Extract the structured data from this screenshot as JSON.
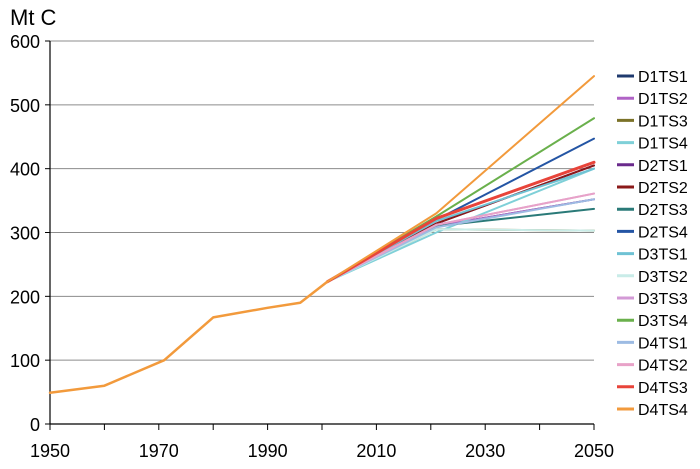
{
  "chart_data": {
    "type": "line",
    "unit_label": "Mt C",
    "xlim": [
      1950,
      2050
    ],
    "ylim": [
      0,
      600
    ],
    "xticks": [
      "1950",
      "1970",
      "1990",
      "2010",
      "2030",
      "2050"
    ],
    "yticks": [
      "0",
      "100",
      "200",
      "300",
      "400",
      "500",
      "600"
    ],
    "grid": "horizontal",
    "legend_position": "right",
    "history": {
      "x": [
        1950,
        1960,
        1971,
        1980,
        1990,
        1996,
        2001
      ],
      "y": [
        49,
        60,
        100,
        167,
        182,
        190,
        223
      ]
    },
    "x": [
      2001,
      2021,
      2050
    ],
    "series": [
      {
        "name": "D1TS1",
        "color": "#1f3a6e",
        "values": [
          223,
          310,
          352
        ]
      },
      {
        "name": "D1TS2",
        "color": "#b063c6",
        "values": [
          223,
          310,
          352
        ]
      },
      {
        "name": "D1TS3",
        "color": "#7b7228",
        "values": [
          223,
          305,
          303
        ]
      },
      {
        "name": "D1TS4",
        "color": "#7fd0d8",
        "values": [
          223,
          300,
          400
        ]
      },
      {
        "name": "D2TS1",
        "color": "#6a2a8c",
        "values": [
          223,
          314,
          405
        ]
      },
      {
        "name": "D2TS2",
        "color": "#8b1a1a",
        "values": [
          223,
          314,
          405
        ]
      },
      {
        "name": "D2TS3",
        "color": "#2a7a78",
        "values": [
          223,
          310,
          337
        ]
      },
      {
        "name": "D2TS4",
        "color": "#2455a4",
        "values": [
          223,
          320,
          447
        ]
      },
      {
        "name": "D3TS1",
        "color": "#6fc2d4",
        "values": [
          223,
          318,
          400
        ]
      },
      {
        "name": "D3TS2",
        "color": "#c9ece8",
        "values": [
          223,
          305,
          303
        ]
      },
      {
        "name": "D3TS3",
        "color": "#d39ad6",
        "values": [
          223,
          312,
          361
        ]
      },
      {
        "name": "D3TS4",
        "color": "#6ab04c",
        "values": [
          223,
          325,
          479
        ]
      },
      {
        "name": "D4TS1",
        "color": "#9dbbe3",
        "values": [
          223,
          308,
          352
        ]
      },
      {
        "name": "D4TS2",
        "color": "#e8a2c8",
        "values": [
          223,
          312,
          361
        ]
      },
      {
        "name": "D4TS3",
        "color": "#e8443a",
        "values": [
          223,
          322,
          410
        ]
      },
      {
        "name": "D4TS4",
        "color": "#f29a3c",
        "values": [
          223,
          330,
          545
        ]
      }
    ],
    "history_color": "#f29a3c"
  }
}
